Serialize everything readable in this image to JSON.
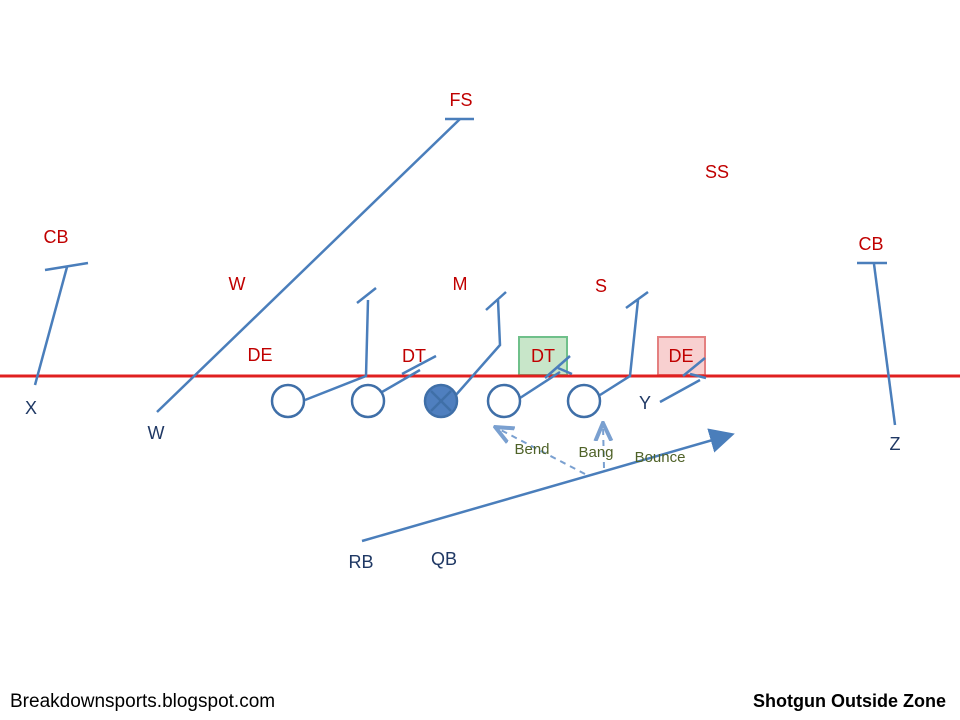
{
  "defense": [
    {
      "label": "FS"
    },
    {
      "label": "SS"
    },
    {
      "label": "CB"
    },
    {
      "label": "CB"
    },
    {
      "label": "W"
    },
    {
      "label": "M"
    },
    {
      "label": "S"
    },
    {
      "label": "DE"
    },
    {
      "label": "DT"
    },
    {
      "label": "DT"
    },
    {
      "label": "DE"
    }
  ],
  "offense": [
    {
      "label": "X"
    },
    {
      "label": "W"
    },
    {
      "label": "Y"
    },
    {
      "label": "Z"
    },
    {
      "label": "RB"
    },
    {
      "label": "QB"
    }
  ],
  "run_paths": [
    {
      "label": "Bend"
    },
    {
      "label": "Bang"
    },
    {
      "label": "Bounce"
    }
  ],
  "footer": {
    "source": "Breakdownsports.blogspot.com",
    "title": "Shotgun Outside Zone"
  }
}
